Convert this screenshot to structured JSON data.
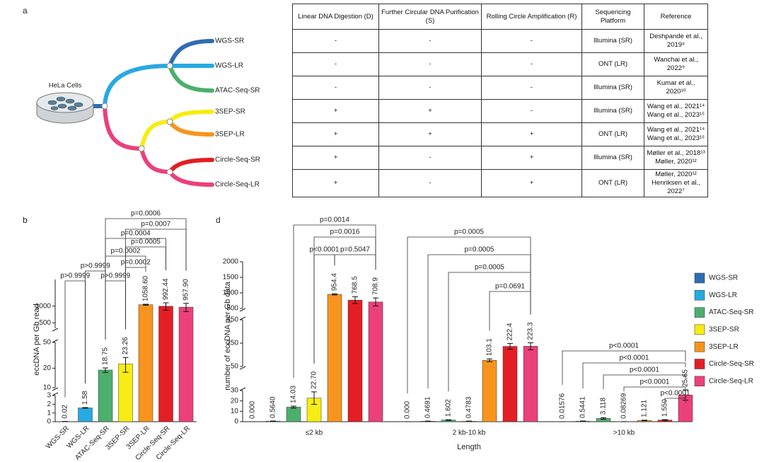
{
  "diagram": {
    "panel": "a",
    "root": "HeLa Cells",
    "leaves": [
      "WGS-SR",
      "WGS-LR",
      "ATAC-Seq-SR",
      "3SEP-SR",
      "3SEP-LR",
      "Circle-Seq-SR",
      "Circle-Seq-LR"
    ]
  },
  "table": {
    "header": [
      "Linear DNA Digestion (D)",
      "Further Circular DNA Purification (S)",
      "Rolling Circle Amplification (R)",
      "Sequencing Platform",
      "Reference"
    ],
    "rows": [
      [
        "-",
        "-",
        "-",
        "Illumina (SR)",
        [
          "Deshpande et al., 2019⁸"
        ]
      ],
      [
        "-",
        "-",
        "-",
        "ONT (LR)",
        [
          "Wanchai et al., 2022⁹"
        ]
      ],
      [
        "-",
        "-",
        "-",
        "Illumina (SR)",
        [
          "Kumar et al., 2020¹⁰"
        ]
      ],
      [
        "+",
        "+",
        "-",
        "Illumina (SR)",
        [
          "Wang et al., 2021¹⁴",
          "Wang et al., 2023¹⁵"
        ]
      ],
      [
        "+",
        "+",
        "+",
        "ONT (LR)",
        [
          "Wang et al., 2021¹⁴",
          "Wang et al., 2023¹⁵"
        ]
      ],
      [
        "+",
        "-",
        "+",
        "Illumina (SR)",
        [
          "Møller et al., 2018¹³",
          "Møller, 2020¹²"
        ]
      ],
      [
        "+",
        "-",
        "+",
        "ONT (LR)",
        [
          "Møller, 2020¹²",
          "Henriksen et al., 2022⁷"
        ]
      ]
    ]
  },
  "chart_data": [
    {
      "type": "bar",
      "panel": "b",
      "ylabel": "eccDNA per Gb read",
      "categories": [
        "WGS-SR",
        "WGS-LR",
        "ATAC-Seq-SR",
        "3SEP-SR",
        "3SEP-LR",
        "Circle-Seq-SR",
        "Circle-Seq-LR"
      ],
      "values": [
        0.02,
        1.58,
        18.75,
        23.26,
        1058.6,
        992.44,
        957.9
      ],
      "value_labels": [
        "0.02",
        "1.58",
        "18.75",
        "23.26",
        "1058.60",
        "992.44",
        "957.90"
      ],
      "errors": [
        0.01,
        0.04,
        1.5,
        6,
        20,
        150,
        160
      ],
      "colors": [
        "#2f6db3",
        "#27aae1",
        "#4caf6e",
        "#f7ec13",
        "#f7941d",
        "#e31e24",
        "#ec407a"
      ],
      "y_segments": [
        {
          "ylim": [
            0,
            3
          ],
          "yticks": [
            0,
            1,
            2,
            3
          ]
        },
        {
          "ylim": [
            10,
            50
          ],
          "yticks": [
            10,
            20,
            50
          ],
          "log": true
        },
        {
          "ylim": [
            400,
            3000
          ],
          "yticks": [
            500,
            1000
          ],
          "log": true
        }
      ],
      "comparisons": [
        {
          "from": "WGS-SR",
          "to": "WGS-LR",
          "label": "p>0.9999"
        },
        {
          "from": "WGS-LR",
          "to": "ATAC-Seq-SR",
          "label": "p>0.9999"
        },
        {
          "from": "ATAC-Seq-SR",
          "to": "3SEP-SR",
          "label": "p>0.9999"
        },
        {
          "from": "3SEP-SR",
          "to": "3SEP-LR",
          "label": "p=0.0002"
        },
        {
          "from": "ATAC-Seq-SR",
          "to": "3SEP-LR",
          "label": "p=0.0002"
        },
        {
          "from": "3SEP-SR",
          "to": "Circle-Seq-SR",
          "label": "p=0.0005"
        },
        {
          "from": "ATAC-Seq-SR",
          "to": "Circle-Seq-SR",
          "label": "p=0.0004"
        },
        {
          "from": "3SEP-SR",
          "to": "Circle-Seq-LR",
          "label": "p=0.0007"
        },
        {
          "from": "ATAC-Seq-SR",
          "to": "Circle-Seq-LR",
          "label": "p=0.0006"
        }
      ]
    },
    {
      "type": "bar",
      "panel": "d",
      "ylabel": "number of eccDNA per Gb data",
      "xlabel": "Length",
      "categories": [
        "≤2 kb",
        "2 kb-10 kb",
        ">10 kb"
      ],
      "series": [
        {
          "name": "WGS-SR",
          "color": "#2f6db3",
          "values": [
            0,
            0,
            0.01576
          ],
          "value_labels": [
            "0.000",
            "0.000",
            "0.01576"
          ],
          "errors": [
            0,
            0,
            0.005
          ]
        },
        {
          "name": "WGS-LR",
          "color": "#27aae1",
          "values": [
            0.564,
            0.4691,
            0.5441
          ],
          "value_labels": [
            "0.5640",
            "0.4691",
            "0.5441"
          ],
          "errors": [
            0.1,
            0.1,
            0.1
          ]
        },
        {
          "name": "ATAC-Seq-SR",
          "color": "#4caf6e",
          "values": [
            14.03,
            1.602,
            3.118
          ],
          "value_labels": [
            "14.03",
            "1.602",
            "3.118"
          ],
          "errors": [
            1,
            0.3,
            0.8
          ]
        },
        {
          "name": "3SEP-SR",
          "color": "#f7ec13",
          "values": [
            22.7,
            0.4783,
            0.08269
          ],
          "value_labels": [
            "22.70",
            "0.4783",
            "0.08269"
          ],
          "errors": [
            6,
            0.1,
            0.02
          ]
        },
        {
          "name": "3SEP-LR",
          "color": "#f7941d",
          "values": [
            954.4,
            103.1,
            1.121
          ],
          "value_labels": [
            "954.4",
            "103.1",
            "1.121"
          ],
          "errors": [
            20,
            12,
            0.3
          ]
        },
        {
          "name": "Circle-Seq-SR",
          "color": "#e31e24",
          "values": [
            768.5,
            222.4,
            1.55
          ],
          "value_labels": [
            "768.5",
            "222.4",
            "1.550"
          ],
          "errors": [
            110,
            25,
            0.4
          ]
        },
        {
          "name": "Circle-Seq-LR",
          "color": "#ec407a",
          "values": [
            708.9,
            223.3,
            25.65
          ],
          "value_labels": [
            "708.9",
            "223.3",
            "25.65"
          ],
          "errors": [
            130,
            30,
            5
          ]
        }
      ],
      "y_segments": [
        {
          "ylim": [
            0,
            30
          ],
          "yticks": [
            0,
            10,
            20,
            30
          ]
        },
        {
          "ylim": [
            50,
            450
          ],
          "yticks": [
            50,
            250,
            450
          ]
        },
        {
          "ylim": [
            500,
            2000
          ],
          "yticks": [
            500,
            1000,
            1500,
            2000
          ]
        }
      ],
      "comparisons": [
        {
          "group": "≤2 kb",
          "from": "ATAC-Seq-SR",
          "to": "Circle-Seq-LR",
          "label": "p=0.0014"
        },
        {
          "group": "≤2 kb",
          "from": "3SEP-SR",
          "to": "Circle-Seq-LR",
          "label": "p=0.0016"
        },
        {
          "group": "≤2 kb",
          "from": "3SEP-SR",
          "to": "3SEP-LR",
          "label": "p<0.0001"
        },
        {
          "group": "≤2 kb",
          "from": "3SEP-LR",
          "to": "Circle-Seq-LR",
          "label": "p=0.5047"
        },
        {
          "group": "2 kb-10 kb",
          "from": "WGS-SR",
          "to": "Circle-Seq-LR",
          "label": "p=0.0005"
        },
        {
          "group": "2 kb-10 kb",
          "from": "WGS-LR",
          "to": "Circle-Seq-LR",
          "label": "p=0.0005"
        },
        {
          "group": "2 kb-10 kb",
          "from": "ATAC-Seq-SR",
          "to": "Circle-Seq-LR",
          "label": "p=0.0005"
        },
        {
          "group": "2 kb-10 kb",
          "from": "3SEP-LR",
          "to": "Circle-Seq-LR",
          "label": "p=0.0691"
        },
        {
          "group": ">10 kb",
          "from": "WGS-SR",
          "to": "Circle-Seq-LR",
          "label": "p<0.0001"
        },
        {
          "group": ">10 kb",
          "from": "WGS-LR",
          "to": "Circle-Seq-LR",
          "label": "p<0.0001"
        },
        {
          "group": ">10 kb",
          "from": "ATAC-Seq-SR",
          "to": "Circle-Seq-LR",
          "label": "p<0.0001"
        },
        {
          "group": ">10 kb",
          "from": "3SEP-SR",
          "to": "Circle-Seq-LR",
          "label": "p<0.0001"
        },
        {
          "group": ">10 kb",
          "from": "Circle-Seq-SR",
          "to": "Circle-Seq-LR",
          "label": "p<0.0001"
        }
      ]
    }
  ]
}
